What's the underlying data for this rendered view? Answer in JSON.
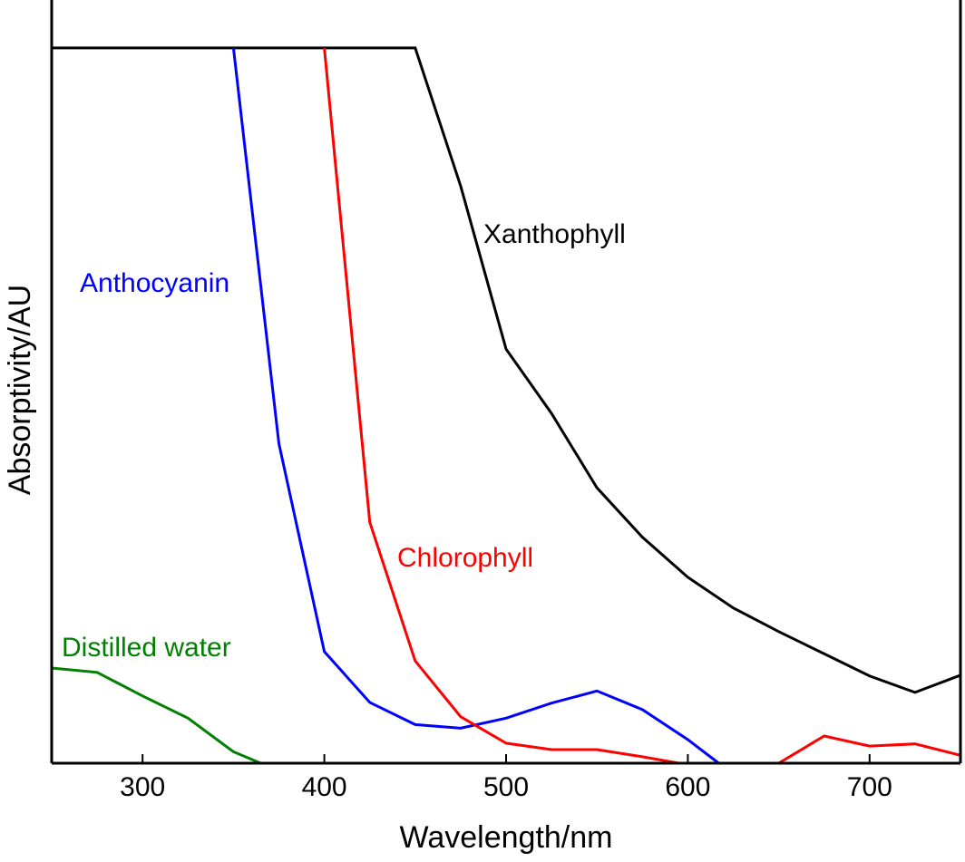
{
  "chart_data": {
    "type": "line",
    "title": "",
    "xlabel": "Wavelength/nm",
    "ylabel": "Absorptivity/AU",
    "xlim": [
      250,
      750
    ],
    "ylim": [
      0,
      1.067
    ],
    "xticks": [
      300,
      400,
      500,
      600,
      700
    ],
    "xtick_labels": [
      "300",
      "400",
      "500",
      "600",
      "700"
    ],
    "grid": false,
    "series": [
      {
        "name": "Xanthophyll",
        "color": "#000000",
        "x": [
          250,
          450,
          475,
          500,
          525,
          550,
          575,
          600,
          625,
          650,
          675,
          700,
          725,
          750
        ],
        "y": [
          1.0,
          1.0,
          0.807,
          0.579,
          0.489,
          0.385,
          0.316,
          0.26,
          0.217,
          0.184,
          0.153,
          0.122,
          0.099,
          0.123
        ]
      },
      {
        "name": "Anthocyanin",
        "color": "#0000ff",
        "x": [
          350,
          375,
          400,
          425,
          450,
          475,
          500,
          525,
          550,
          575,
          600,
          617
        ],
        "y": [
          1.0,
          0.447,
          0.156,
          0.085,
          0.054,
          0.049,
          0.063,
          0.084,
          0.101,
          0.075,
          0.033,
          0.0
        ]
      },
      {
        "name": "Chlorophyll",
        "color": "#ff0000",
        "x": [
          400,
          425,
          450,
          475,
          500,
          525,
          550,
          575,
          595,
          650,
          675,
          700,
          725,
          750
        ],
        "y": [
          1.0,
          0.337,
          0.143,
          0.065,
          0.028,
          0.019,
          0.019,
          0.009,
          0.0,
          0.0,
          0.038,
          0.024,
          0.027,
          0.011
        ]
      },
      {
        "name": "Distilled water",
        "color": "#008000",
        "x": [
          250,
          275,
          300,
          325,
          350,
          365
        ],
        "y": [
          0.133,
          0.127,
          0.094,
          0.063,
          0.016,
          0.0
        ]
      }
    ],
    "annotations": [
      "Xanthophyll",
      "Anthocyanin",
      "Chlorophyll",
      "Distilled water"
    ]
  }
}
